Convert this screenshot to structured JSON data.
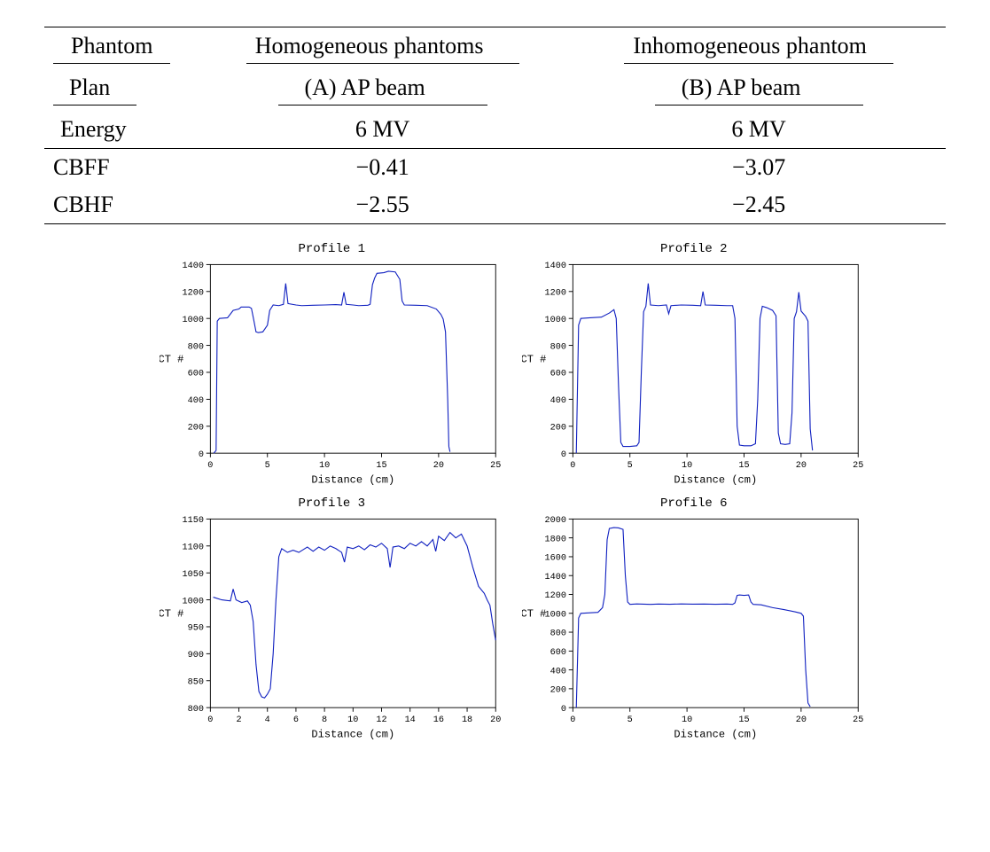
{
  "table": {
    "header_phantom_label": "Phantom",
    "header_plan_label": "Plan",
    "header_energy_label": "Energy",
    "col_a_phantom": "Homogeneous phantoms",
    "col_b_phantom": "Inhomogeneous phantom",
    "col_a_plan": "(A)  AP beam",
    "col_b_plan": "(B) AP beam",
    "energy_a": "6 MV",
    "energy_b": "6 MV",
    "rows": [
      {
        "label": "CBFF",
        "a": "−0.41",
        "b": "−3.07"
      },
      {
        "label": "CBHF",
        "a": "−2.55",
        "b": "−2.45"
      }
    ],
    "label_fontsize": 26,
    "value_fontsize": 26,
    "rule_color": "#000000"
  },
  "charts": {
    "line_color": "#1020c0",
    "axis_color": "#000000",
    "background_color": "#ffffff",
    "tick_font": "Courier New",
    "tick_fontsize": 11,
    "title_fontsize": 14,
    "axis_label_fontsize": 13,
    "panels": [
      {
        "title": "Profile 1",
        "xlabel": "Distance (cm)",
        "ylabel": "CT #",
        "xlim": [
          0,
          25
        ],
        "xtick_step": 5,
        "ylim": [
          0,
          1400
        ],
        "ytick_step": 200,
        "data": [
          [
            0.3,
            0
          ],
          [
            0.5,
            20
          ],
          [
            0.6,
            980
          ],
          [
            0.8,
            1000
          ],
          [
            1.5,
            1005
          ],
          [
            2.0,
            1060
          ],
          [
            2.5,
            1070
          ],
          [
            2.7,
            1085
          ],
          [
            3.4,
            1085
          ],
          [
            3.6,
            1075
          ],
          [
            3.8,
            990
          ],
          [
            4.0,
            900
          ],
          [
            4.2,
            895
          ],
          [
            4.6,
            900
          ],
          [
            5.0,
            950
          ],
          [
            5.2,
            1060
          ],
          [
            5.5,
            1100
          ],
          [
            6.0,
            1095
          ],
          [
            6.4,
            1105
          ],
          [
            6.6,
            1260
          ],
          [
            6.8,
            1110
          ],
          [
            7.5,
            1100
          ],
          [
            8.0,
            1095
          ],
          [
            9.0,
            1098
          ],
          [
            10.0,
            1100
          ],
          [
            11.0,
            1103
          ],
          [
            11.5,
            1100
          ],
          [
            11.7,
            1195
          ],
          [
            11.9,
            1105
          ],
          [
            12.5,
            1100
          ],
          [
            13.0,
            1095
          ],
          [
            13.8,
            1098
          ],
          [
            14.0,
            1105
          ],
          [
            14.2,
            1250
          ],
          [
            14.4,
            1300
          ],
          [
            14.6,
            1335
          ],
          [
            15.2,
            1340
          ],
          [
            15.6,
            1350
          ],
          [
            16.2,
            1345
          ],
          [
            16.6,
            1290
          ],
          [
            16.8,
            1130
          ],
          [
            17.0,
            1100
          ],
          [
            18.0,
            1098
          ],
          [
            19.0,
            1095
          ],
          [
            19.8,
            1070
          ],
          [
            20.2,
            1030
          ],
          [
            20.4,
            995
          ],
          [
            20.6,
            900
          ],
          [
            20.8,
            400
          ],
          [
            20.9,
            50
          ],
          [
            21.0,
            10
          ]
        ]
      },
      {
        "title": "Profile 2",
        "xlabel": "Distance (cm)",
        "ylabel": "CT #",
        "xlim": [
          0,
          25
        ],
        "xtick_step": 5,
        "ylim": [
          0,
          1400
        ],
        "ytick_step": 200,
        "data": [
          [
            0.3,
            0
          ],
          [
            0.5,
            950
          ],
          [
            0.7,
            1000
          ],
          [
            1.5,
            1005
          ],
          [
            2.5,
            1010
          ],
          [
            3.2,
            1040
          ],
          [
            3.6,
            1065
          ],
          [
            3.8,
            1000
          ],
          [
            4.0,
            500
          ],
          [
            4.2,
            80
          ],
          [
            4.4,
            50
          ],
          [
            5.0,
            50
          ],
          [
            5.6,
            55
          ],
          [
            5.8,
            80
          ],
          [
            6.0,
            600
          ],
          [
            6.2,
            1050
          ],
          [
            6.4,
            1090
          ],
          [
            6.6,
            1260
          ],
          [
            6.8,
            1100
          ],
          [
            7.5,
            1095
          ],
          [
            8.2,
            1100
          ],
          [
            8.4,
            1035
          ],
          [
            8.6,
            1095
          ],
          [
            9.5,
            1100
          ],
          [
            10.5,
            1098
          ],
          [
            11.2,
            1095
          ],
          [
            11.4,
            1200
          ],
          [
            11.6,
            1100
          ],
          [
            12.5,
            1098
          ],
          [
            13.5,
            1095
          ],
          [
            14.0,
            1095
          ],
          [
            14.2,
            1000
          ],
          [
            14.4,
            200
          ],
          [
            14.6,
            60
          ],
          [
            15.0,
            55
          ],
          [
            15.6,
            55
          ],
          [
            16.0,
            70
          ],
          [
            16.2,
            400
          ],
          [
            16.4,
            1000
          ],
          [
            16.6,
            1090
          ],
          [
            17.0,
            1080
          ],
          [
            17.5,
            1060
          ],
          [
            17.8,
            1020
          ],
          [
            18.0,
            150
          ],
          [
            18.2,
            70
          ],
          [
            18.6,
            65
          ],
          [
            19.0,
            70
          ],
          [
            19.2,
            300
          ],
          [
            19.4,
            1000
          ],
          [
            19.6,
            1050
          ],
          [
            19.8,
            1195
          ],
          [
            20.0,
            1055
          ],
          [
            20.4,
            1015
          ],
          [
            20.6,
            980
          ],
          [
            20.8,
            180
          ],
          [
            21.0,
            20
          ]
        ]
      },
      {
        "title": "Profile 3",
        "xlabel": "Distance (cm)",
        "ylabel": "CT #",
        "xlim": [
          0,
          20
        ],
        "xtick_step": 2,
        "ylim": [
          800,
          1150
        ],
        "ytick_step": 50,
        "data": [
          [
            0.2,
            1005
          ],
          [
            0.8,
            1000
          ],
          [
            1.4,
            998
          ],
          [
            1.6,
            1020
          ],
          [
            1.8,
            1000
          ],
          [
            2.2,
            995
          ],
          [
            2.6,
            998
          ],
          [
            2.8,
            990
          ],
          [
            3.0,
            960
          ],
          [
            3.2,
            880
          ],
          [
            3.4,
            830
          ],
          [
            3.6,
            820
          ],
          [
            3.8,
            818
          ],
          [
            4.0,
            825
          ],
          [
            4.2,
            835
          ],
          [
            4.4,
            900
          ],
          [
            4.6,
            1000
          ],
          [
            4.8,
            1080
          ],
          [
            5.0,
            1095
          ],
          [
            5.4,
            1088
          ],
          [
            5.8,
            1092
          ],
          [
            6.2,
            1088
          ],
          [
            6.8,
            1098
          ],
          [
            7.2,
            1090
          ],
          [
            7.6,
            1098
          ],
          [
            8.0,
            1092
          ],
          [
            8.4,
            1100
          ],
          [
            8.8,
            1095
          ],
          [
            9.2,
            1088
          ],
          [
            9.4,
            1070
          ],
          [
            9.6,
            1098
          ],
          [
            10.0,
            1095
          ],
          [
            10.4,
            1100
          ],
          [
            10.8,
            1093
          ],
          [
            11.2,
            1102
          ],
          [
            11.6,
            1098
          ],
          [
            12.0,
            1105
          ],
          [
            12.4,
            1095
          ],
          [
            12.6,
            1060
          ],
          [
            12.8,
            1098
          ],
          [
            13.2,
            1100
          ],
          [
            13.6,
            1095
          ],
          [
            14.0,
            1105
          ],
          [
            14.4,
            1100
          ],
          [
            14.8,
            1108
          ],
          [
            15.2,
            1100
          ],
          [
            15.6,
            1112
          ],
          [
            15.8,
            1090
          ],
          [
            16.0,
            1118
          ],
          [
            16.4,
            1110
          ],
          [
            16.8,
            1125
          ],
          [
            17.2,
            1115
          ],
          [
            17.6,
            1122
          ],
          [
            18.0,
            1100
          ],
          [
            18.4,
            1060
          ],
          [
            18.8,
            1025
          ],
          [
            19.2,
            1012
          ],
          [
            19.4,
            1000
          ],
          [
            19.6,
            990
          ],
          [
            19.8,
            955
          ],
          [
            20.0,
            925
          ]
        ]
      },
      {
        "title": "Profile 6",
        "xlabel": "Distance (cm)",
        "ylabel": "CT #",
        "xlim": [
          0,
          25
        ],
        "xtick_step": 5,
        "ylim": [
          0,
          2000
        ],
        "ytick_step": 200,
        "data": [
          [
            0.3,
            0
          ],
          [
            0.5,
            950
          ],
          [
            0.7,
            1000
          ],
          [
            1.5,
            1005
          ],
          [
            2.2,
            1010
          ],
          [
            2.6,
            1060
          ],
          [
            2.8,
            1200
          ],
          [
            3.0,
            1780
          ],
          [
            3.2,
            1900
          ],
          [
            3.6,
            1910
          ],
          [
            4.0,
            1905
          ],
          [
            4.4,
            1890
          ],
          [
            4.6,
            1400
          ],
          [
            4.8,
            1120
          ],
          [
            5.0,
            1095
          ],
          [
            5.6,
            1100
          ],
          [
            6.2,
            1097
          ],
          [
            6.8,
            1095
          ],
          [
            7.5,
            1098
          ],
          [
            8.5,
            1096
          ],
          [
            9.5,
            1100
          ],
          [
            10.5,
            1097
          ],
          [
            11.5,
            1098
          ],
          [
            12.5,
            1096
          ],
          [
            13.5,
            1098
          ],
          [
            14.0,
            1095
          ],
          [
            14.2,
            1110
          ],
          [
            14.4,
            1190
          ],
          [
            14.6,
            1195
          ],
          [
            15.0,
            1190
          ],
          [
            15.4,
            1195
          ],
          [
            15.6,
            1120
          ],
          [
            15.8,
            1095
          ],
          [
            16.5,
            1090
          ],
          [
            17.5,
            1060
          ],
          [
            18.5,
            1040
          ],
          [
            19.5,
            1015
          ],
          [
            20.0,
            1000
          ],
          [
            20.2,
            970
          ],
          [
            20.4,
            400
          ],
          [
            20.6,
            50
          ],
          [
            20.8,
            10
          ]
        ]
      }
    ]
  }
}
